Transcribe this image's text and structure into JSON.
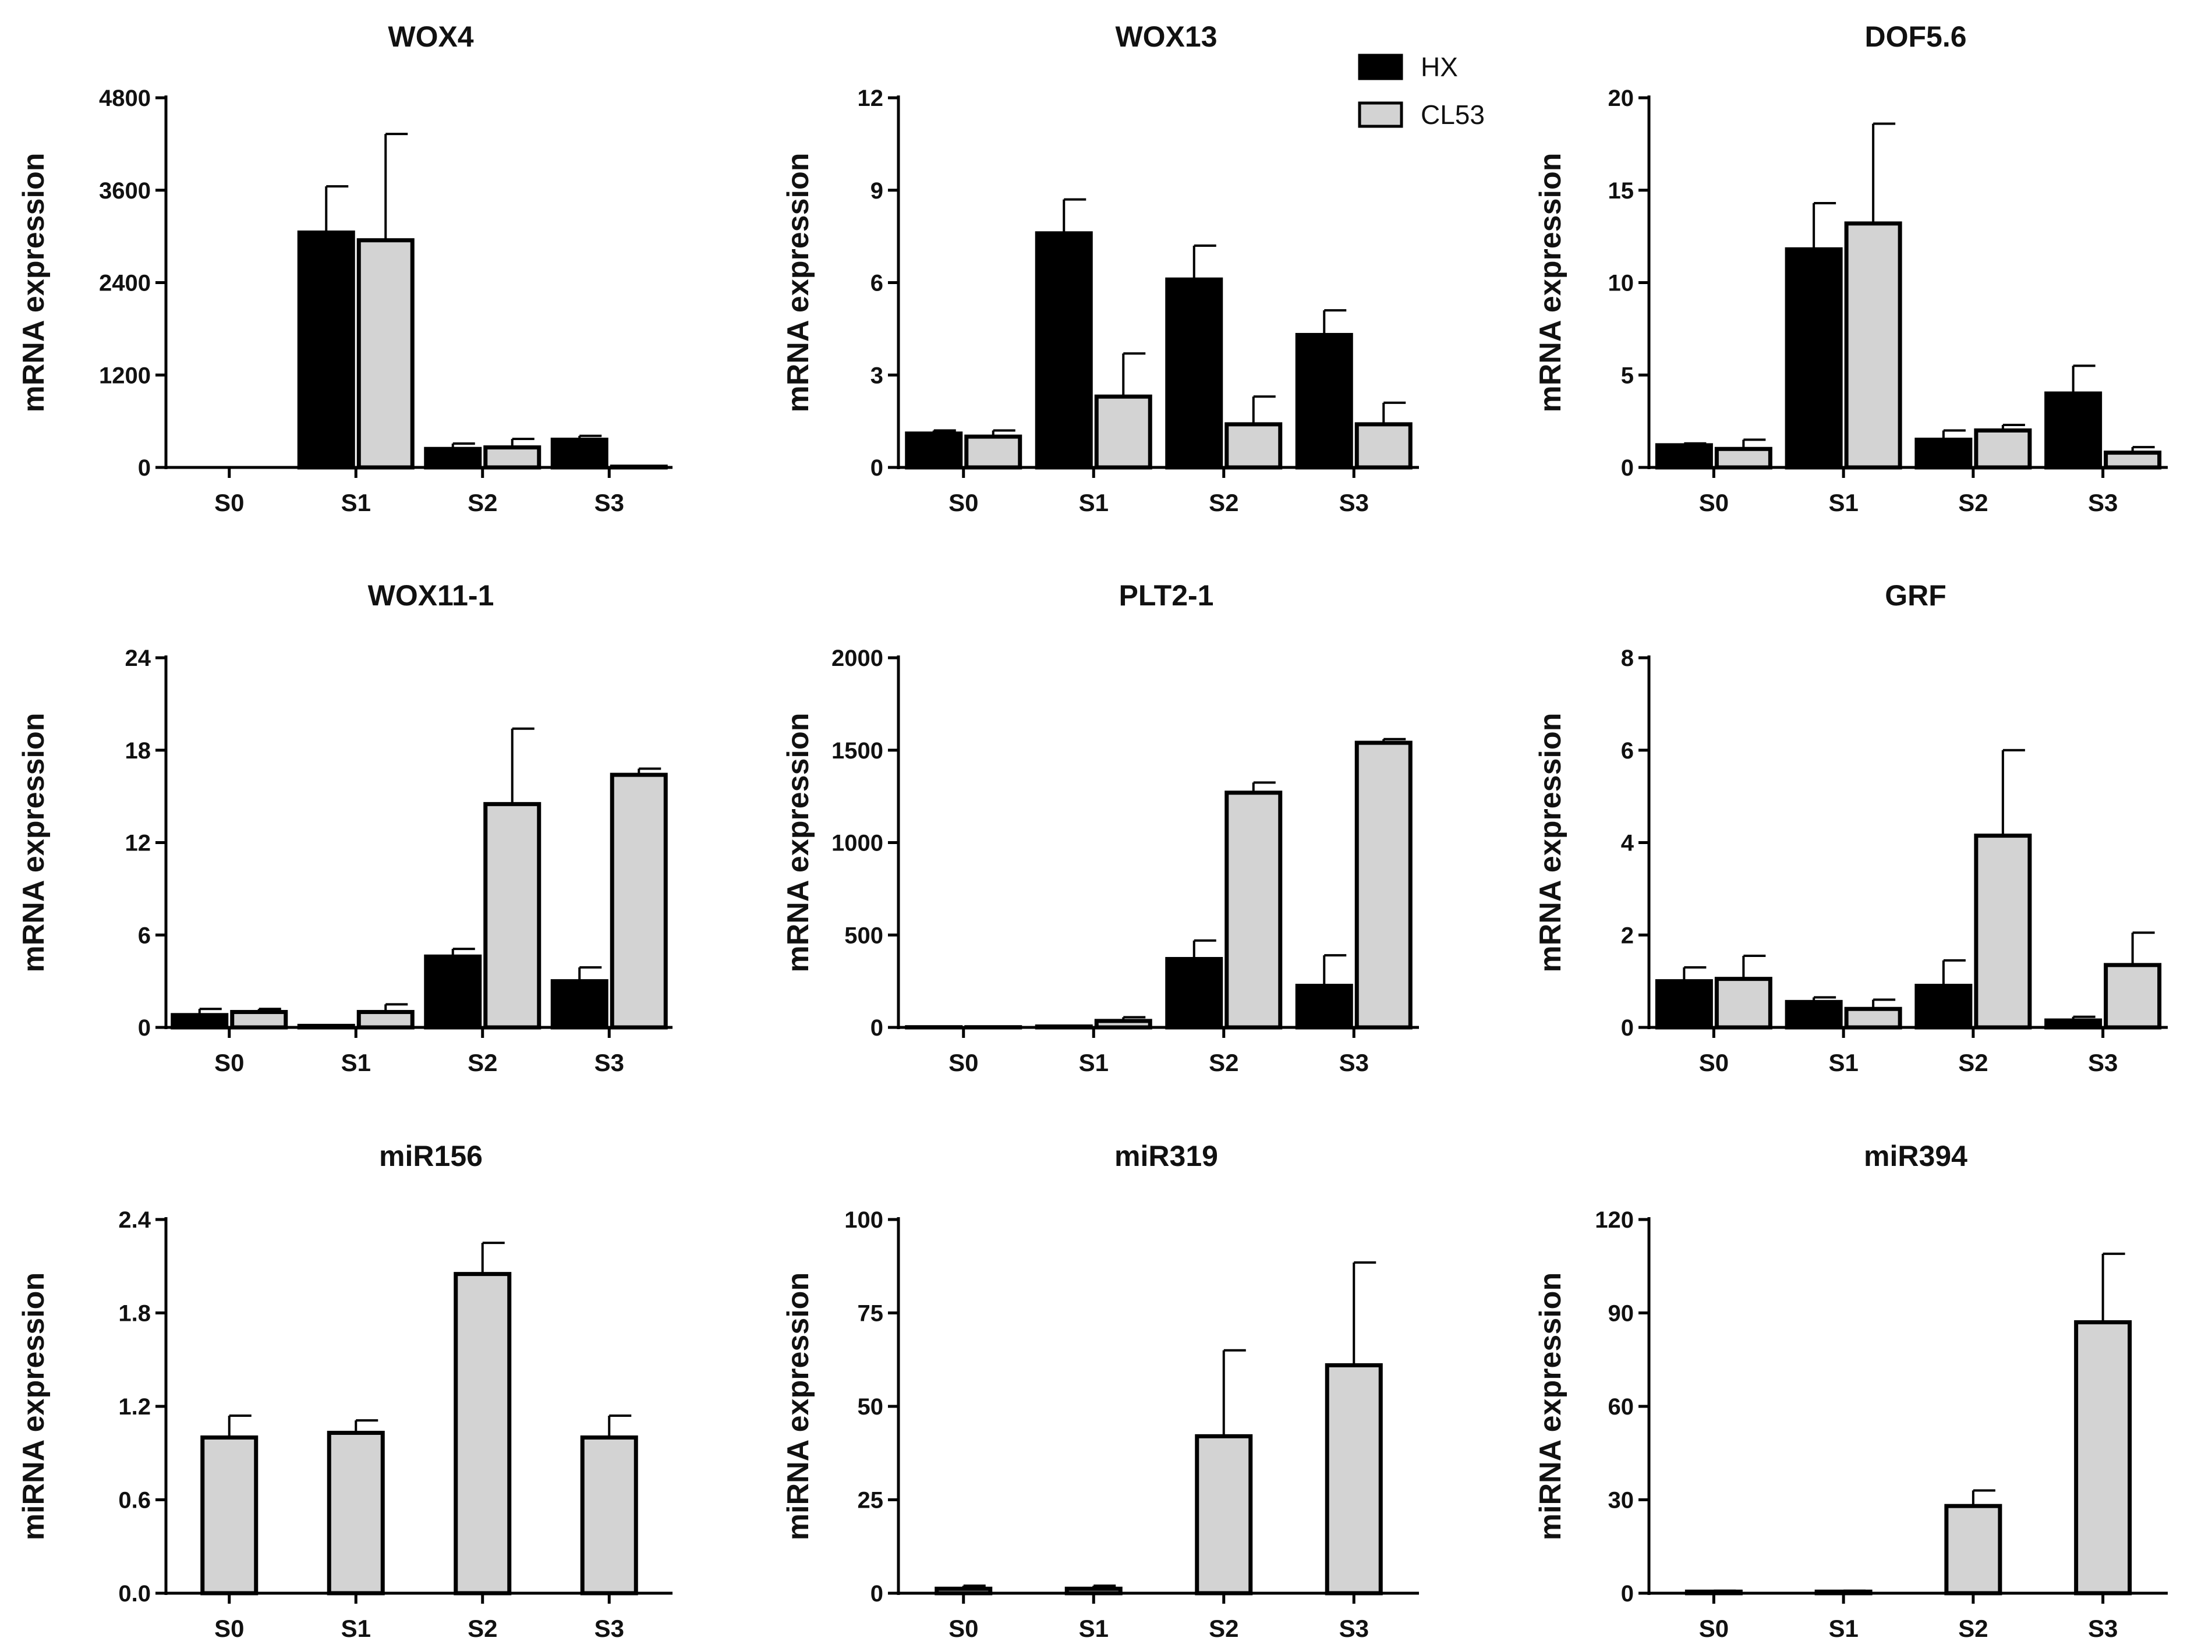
{
  "colors": {
    "hx": "#000000",
    "cl53": "#d3d3d3",
    "axis": "#000000",
    "background": "#ffffff"
  },
  "legend": {
    "items": [
      {
        "name": "HX",
        "color": "#000000"
      },
      {
        "name": "CL53",
        "color": "#d3d3d3"
      }
    ]
  },
  "chart_data": [
    {
      "type": "bar",
      "title": "WOX4",
      "ylabel": "mRNA expression",
      "ylim": [
        0,
        4800
      ],
      "yticks": [
        "0",
        "1200",
        "2400",
        "3600",
        "4800"
      ],
      "categories": [
        "S0",
        "S1",
        "S2",
        "S3"
      ],
      "series": [
        {
          "name": "HX",
          "values": [
            0,
            3050,
            240,
            360
          ],
          "errors": [
            0,
            600,
            70,
            50
          ]
        },
        {
          "name": "CL53",
          "values": [
            0,
            2950,
            260,
            10
          ],
          "errors": [
            0,
            1380,
            110,
            5
          ]
        }
      ]
    },
    {
      "type": "bar",
      "title": "WOX13",
      "ylabel": "mRNA expression",
      "ylim": [
        0,
        12
      ],
      "yticks": [
        "0",
        "3",
        "6",
        "9",
        "12"
      ],
      "categories": [
        "S0",
        "S1",
        "S2",
        "S3"
      ],
      "series": [
        {
          "name": "HX",
          "values": [
            1.1,
            7.6,
            6.1,
            4.3
          ],
          "errors": [
            0.1,
            1.1,
            1.1,
            0.8
          ]
        },
        {
          "name": "CL53",
          "values": [
            1.0,
            2.3,
            1.4,
            1.4
          ],
          "errors": [
            0.2,
            1.4,
            0.9,
            0.7
          ]
        }
      ]
    },
    {
      "type": "bar",
      "title": "DOF5.6",
      "ylabel": "mRNA expression",
      "ylim": [
        0,
        20
      ],
      "yticks": [
        "0",
        "5",
        "10",
        "15",
        "20"
      ],
      "categories": [
        "S0",
        "S1",
        "S2",
        "S3"
      ],
      "series": [
        {
          "name": "HX",
          "values": [
            1.2,
            11.8,
            1.5,
            4.0
          ],
          "errors": [
            0.1,
            2.5,
            0.5,
            1.5
          ]
        },
        {
          "name": "CL53",
          "values": [
            1.0,
            13.2,
            2.0,
            0.8
          ],
          "errors": [
            0.5,
            5.4,
            0.3,
            0.3
          ]
        }
      ]
    },
    {
      "type": "bar",
      "title": "WOX11-1",
      "ylabel": "mRNA expression",
      "ylim": [
        0,
        24
      ],
      "yticks": [
        "0",
        "6",
        "12",
        "18",
        "24"
      ],
      "categories": [
        "S0",
        "S1",
        "S2",
        "S3"
      ],
      "series": [
        {
          "name": "HX",
          "values": [
            0.8,
            0.1,
            4.6,
            3.0
          ],
          "errors": [
            0.4,
            0.05,
            0.5,
            0.9
          ]
        },
        {
          "name": "CL53",
          "values": [
            1.0,
            1.0,
            14.5,
            16.4
          ],
          "errors": [
            0.2,
            0.5,
            4.9,
            0.4
          ]
        }
      ]
    },
    {
      "type": "bar",
      "title": "PLT2-1",
      "ylabel": "mRNA expression",
      "ylim": [
        0,
        2000
      ],
      "yticks": [
        "0",
        "500",
        "1000",
        "1500",
        "2000"
      ],
      "categories": [
        "S0",
        "S1",
        "S2",
        "S3"
      ],
      "series": [
        {
          "name": "HX",
          "values": [
            1,
            5,
            370,
            225
          ],
          "errors": [
            0,
            3,
            100,
            165
          ]
        },
        {
          "name": "CL53",
          "values": [
            1,
            35,
            1270,
            1540
          ],
          "errors": [
            0,
            20,
            55,
            20
          ]
        }
      ]
    },
    {
      "type": "bar",
      "title": "GRF",
      "ylabel": "mRNA expression",
      "ylim": [
        0,
        8
      ],
      "yticks": [
        "0",
        "2",
        "4",
        "6",
        "8"
      ],
      "categories": [
        "S0",
        "S1",
        "S2",
        "S3"
      ],
      "series": [
        {
          "name": "HX",
          "values": [
            1.0,
            0.55,
            0.9,
            0.15
          ],
          "errors": [
            0.3,
            0.1,
            0.55,
            0.08
          ]
        },
        {
          "name": "CL53",
          "values": [
            1.05,
            0.4,
            4.15,
            1.35
          ],
          "errors": [
            0.5,
            0.2,
            1.85,
            0.7
          ]
        }
      ]
    },
    {
      "type": "bar",
      "title": "miR156",
      "ylabel": "miRNA expression",
      "ylim": [
        0,
        2.4
      ],
      "yticks": [
        "0.0",
        "0.6",
        "1.2",
        "1.8",
        "2.4"
      ],
      "categories": [
        "S0",
        "S1",
        "S2",
        "S3"
      ],
      "series": [
        {
          "name": "CL53",
          "values": [
            1.0,
            1.03,
            2.05,
            1.0
          ],
          "errors": [
            0.14,
            0.08,
            0.2,
            0.14
          ]
        }
      ]
    },
    {
      "type": "bar",
      "title": "miR319",
      "ylabel": "miRNA expression",
      "ylim": [
        0,
        100
      ],
      "yticks": [
        "0",
        "25",
        "50",
        "75",
        "100"
      ],
      "categories": [
        "S0",
        "S1",
        "S2",
        "S3"
      ],
      "series": [
        {
          "name": "CL53",
          "values": [
            1.2,
            1.2,
            42,
            61
          ],
          "errors": [
            0.8,
            0.8,
            23,
            27.5
          ]
        }
      ]
    },
    {
      "type": "bar",
      "title": "miR394",
      "ylabel": "miRNA expression",
      "ylim": [
        0,
        120
      ],
      "yticks": [
        "0",
        "30",
        "60",
        "90",
        "120"
      ],
      "categories": [
        "S0",
        "S1",
        "S2",
        "S3"
      ],
      "series": [
        {
          "name": "CL53",
          "values": [
            0.5,
            0.5,
            28,
            87
          ],
          "errors": [
            0.3,
            0.3,
            5,
            22
          ]
        }
      ]
    }
  ]
}
